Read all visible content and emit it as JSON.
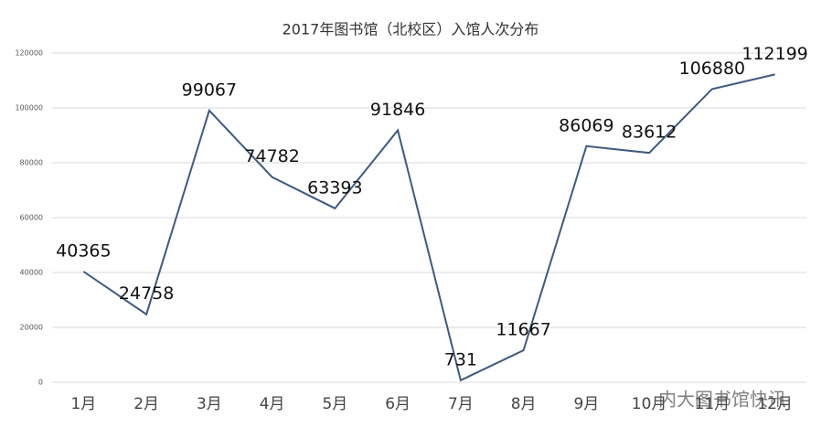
{
  "chart_data": {
    "type": "line",
    "title": "2017年图书馆（北校区）入馆人次分布",
    "categories": [
      "1月",
      "2月",
      "3月",
      "4月",
      "5月",
      "6月",
      "7月",
      "8月",
      "9月",
      "10月",
      "11月",
      "12月"
    ],
    "values": [
      40365,
      24758,
      99067,
      74782,
      63393,
      91846,
      731,
      11667,
      86069,
      83612,
      106880,
      112199
    ],
    "color": "#3d5a80",
    "ylim": [
      0,
      120000
    ],
    "yticks": [
      0,
      20000,
      40000,
      60000,
      80000,
      100000,
      120000
    ],
    "grid": true,
    "watermark": "内大图书馆快讯"
  }
}
